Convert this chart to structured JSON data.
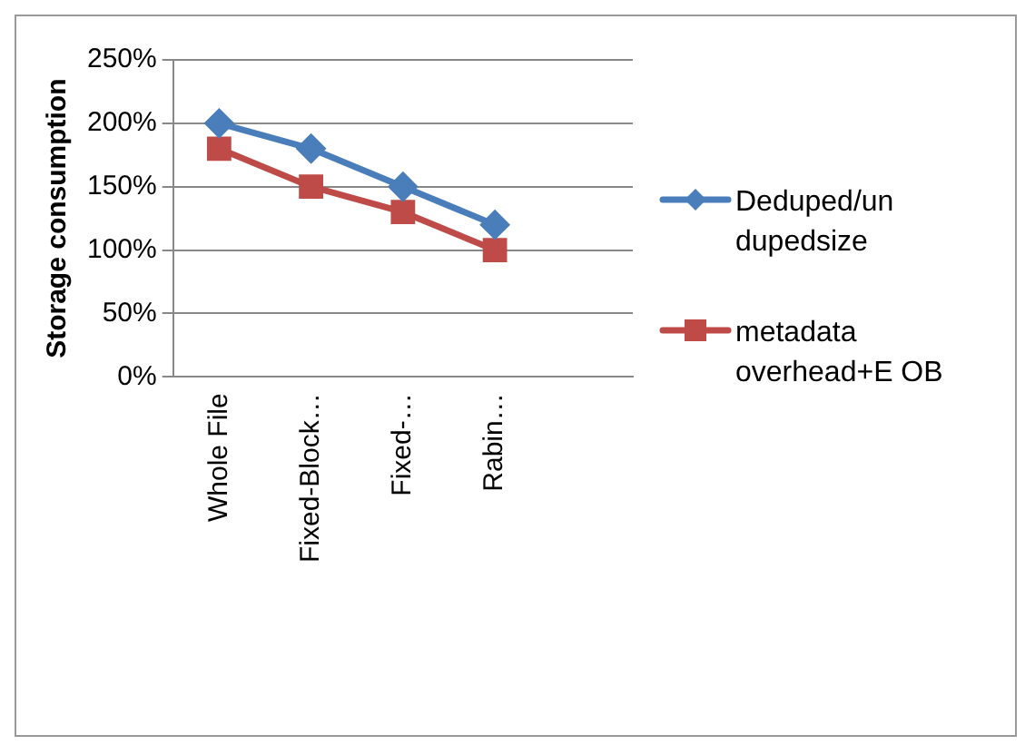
{
  "chart_data": {
    "type": "line",
    "ylabel": "Storage consumption",
    "categories": [
      "Whole File",
      "Fixed-Block…",
      "Fixed-…",
      "Rabin…",
      null
    ],
    "series": [
      {
        "name": "Deduped/un dupedsize",
        "color": "#4a7ebb",
        "marker": "diamond",
        "values": [
          200,
          180,
          150,
          120,
          null
        ]
      },
      {
        "name": "metadata overhead+E OB",
        "color": "#be4b48",
        "marker": "square",
        "values": [
          180,
          150,
          130,
          100,
          null
        ]
      }
    ],
    "ylim": [
      0,
      250
    ],
    "yticks": [
      {
        "value": 0,
        "label": "0%"
      },
      {
        "value": 50,
        "label": "50%"
      },
      {
        "value": 100,
        "label": "100%"
      },
      {
        "value": 150,
        "label": "150%"
      },
      {
        "value": 200,
        "label": "200%"
      },
      {
        "value": 250,
        "label": "250%"
      }
    ],
    "grid": "y",
    "legend": "right"
  }
}
